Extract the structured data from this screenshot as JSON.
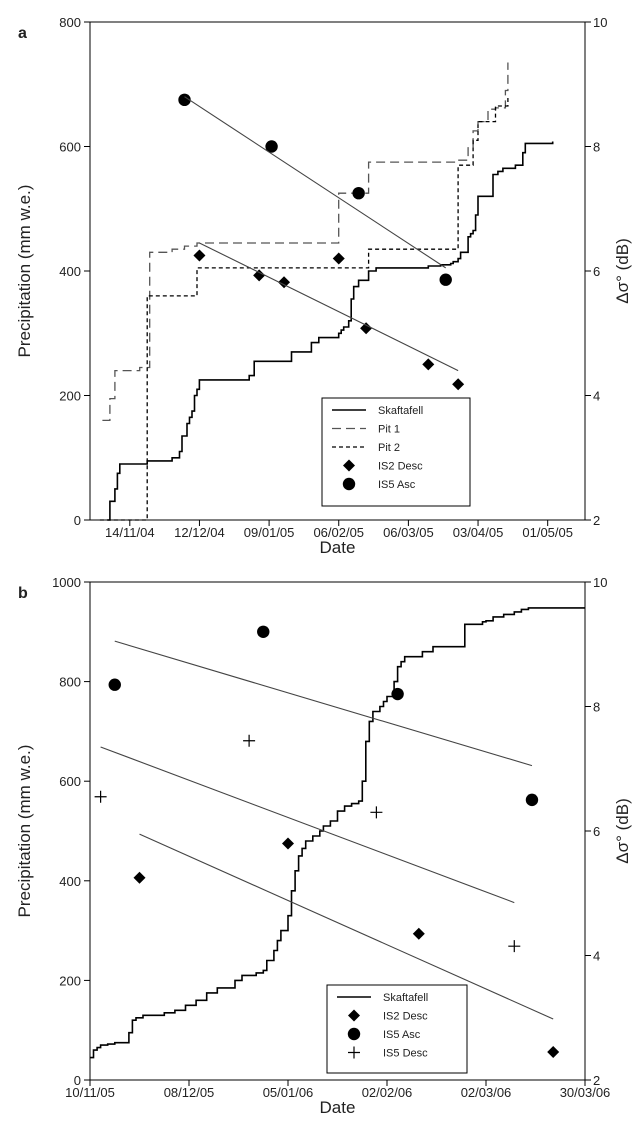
{
  "chart_data": [
    {
      "panel": "a",
      "type": "line",
      "xlabel": "Date",
      "ylabel": "Precipitation (mm w.e.)",
      "y2label": "Δσ° (dB)",
      "x_ticks": [
        "14/11/04",
        "12/12/04",
        "09/01/05",
        "06/02/05",
        "06/03/05",
        "03/04/05",
        "01/05/05"
      ],
      "xlim": [
        "2004-10-29",
        "2005-05-16"
      ],
      "ylim": [
        0,
        800
      ],
      "y_ticks": [
        0,
        200,
        400,
        600,
        800
      ],
      "y2lim": [
        2,
        10
      ],
      "y2_ticks": [
        2,
        4,
        6,
        8,
        10
      ],
      "legend": {
        "position": "bottom-right",
        "entries": [
          "Skaftafell",
          "Pit 1",
          "Pit 2",
          "IS2 Desc",
          "IS5 Asc"
        ]
      },
      "series": [
        {
          "name": "Skaftafell",
          "kind": "step",
          "style": "solid",
          "axis": "left",
          "x": [
            "2004-11-05",
            "2004-11-06",
            "2004-11-08",
            "2004-11-09",
            "2004-11-10",
            "2004-11-21",
            "2004-12-01",
            "2004-12-04",
            "2004-12-05",
            "2004-12-07",
            "2004-12-08",
            "2004-12-09",
            "2004-12-10",
            "2004-12-11",
            "2004-12-12",
            "2004-12-13",
            "2004-12-15",
            "2004-12-16",
            "2005-01-01",
            "2005-01-03",
            "2005-01-10",
            "2005-01-11",
            "2005-01-14",
            "2005-01-18",
            "2005-01-26",
            "2005-01-29",
            "2005-01-31",
            "2005-02-02",
            "2005-02-05",
            "2005-02-06",
            "2005-02-07",
            "2005-02-08",
            "2005-02-10",
            "2005-02-11",
            "2005-02-12",
            "2005-02-14",
            "2005-02-18",
            "2005-02-21",
            "2005-03-14",
            "2005-03-19",
            "2005-03-23",
            "2005-03-24",
            "2005-03-26",
            "2005-03-27",
            "2005-03-30",
            "2005-03-31",
            "2005-04-01",
            "2005-04-02",
            "2005-04-03",
            "2005-04-09",
            "2005-04-11",
            "2005-04-13",
            "2005-04-16",
            "2005-04-18",
            "2005-04-21",
            "2005-04-22",
            "2005-05-03"
          ],
          "values": [
            0,
            30,
            50,
            75,
            90,
            95,
            100,
            110,
            135,
            155,
            165,
            175,
            200,
            210,
            225,
            225,
            225,
            225,
            232,
            255,
            255,
            255,
            255,
            270,
            285,
            293,
            293,
            293,
            293,
            300,
            305,
            310,
            320,
            355,
            375,
            385,
            400,
            405,
            408,
            410,
            412,
            415,
            420,
            430,
            455,
            460,
            465,
            490,
            520,
            555,
            560,
            565,
            565,
            570,
            590,
            605,
            608
          ]
        },
        {
          "name": "Pit 1",
          "kind": "step",
          "style": "dashed",
          "axis": "left",
          "x": [
            "2004-11-03",
            "2004-11-06",
            "2004-11-08",
            "2004-11-18",
            "2004-11-22",
            "2004-12-01",
            "2004-12-06",
            "2004-12-11",
            "2005-02-06",
            "2005-02-18",
            "2005-03-26",
            "2005-03-30",
            "2005-04-01",
            "2005-04-03",
            "2005-04-07",
            "2005-04-10",
            "2005-04-14",
            "2005-04-15"
          ],
          "values": [
            160,
            195,
            240,
            245,
            430,
            435,
            440,
            445,
            525,
            575,
            578,
            600,
            625,
            640,
            660,
            662,
            690,
            735
          ]
        },
        {
          "name": "Pit 2",
          "kind": "step",
          "style": "dotted",
          "axis": "left",
          "x": [
            "2004-11-02",
            "2004-11-19",
            "2004-11-21",
            "2004-12-11",
            "2005-02-18",
            "2005-03-26",
            "2005-04-01",
            "2005-04-03",
            "2005-04-10",
            "2005-04-15"
          ],
          "values": [
            0,
            0,
            360,
            405,
            435,
            570,
            610,
            640,
            665,
            680
          ]
        },
        {
          "name": "IS2 Desc",
          "kind": "scatter",
          "marker": "diamond",
          "axis": "right",
          "x": [
            "2004-12-12",
            "2005-01-05",
            "2005-01-15",
            "2005-02-06",
            "2005-02-17",
            "2005-03-14",
            "2005-03-26"
          ],
          "values": [
            6.25,
            5.93,
            5.82,
            6.2,
            5.08,
            4.5,
            4.18
          ]
        },
        {
          "name": "IS5 Asc",
          "kind": "scatter",
          "marker": "circle",
          "axis": "right",
          "x": [
            "2004-12-06",
            "2005-01-10",
            "2005-02-14",
            "2005-03-21"
          ],
          "values": [
            8.75,
            8.0,
            7.25,
            5.86
          ]
        },
        {
          "kind": "trend",
          "axis": "right",
          "x": [
            "2004-12-06",
            "2005-03-21"
          ],
          "values": [
            8.8,
            6.05
          ]
        },
        {
          "kind": "trend",
          "axis": "right",
          "x": [
            "2004-12-12",
            "2005-03-26"
          ],
          "values": [
            6.45,
            4.4
          ]
        }
      ]
    },
    {
      "panel": "b",
      "type": "line",
      "xlabel": "Date",
      "ylabel": "Precipitation (mm w.e.)",
      "y2label": "Δσ° (dB)",
      "x_ticks": [
        "10/11/05",
        "08/12/05",
        "05/01/06",
        "02/02/06",
        "02/03/06",
        "30/03/06"
      ],
      "xlim": [
        "2005-11-10",
        "2006-03-30"
      ],
      "ylim": [
        0,
        1000
      ],
      "y_ticks": [
        0,
        200,
        400,
        600,
        800,
        1000
      ],
      "y2lim": [
        2,
        10
      ],
      "y2_ticks": [
        2,
        4,
        6,
        8,
        10
      ],
      "legend": {
        "position": "bottom-right",
        "entries": [
          "Skaftafell",
          "IS2 Desc",
          "IS5 Asc",
          "IS5 Desc"
        ]
      },
      "series": [
        {
          "name": "Skaftafell",
          "kind": "step",
          "style": "solid",
          "axis": "left",
          "x": [
            "2005-11-10",
            "2005-11-11",
            "2005-11-12",
            "2005-11-13",
            "2005-11-15",
            "2005-11-17",
            "2005-11-21",
            "2005-11-22",
            "2005-11-23",
            "2005-11-25",
            "2005-12-01",
            "2005-12-04",
            "2005-12-07",
            "2005-12-10",
            "2005-12-13",
            "2005-12-16",
            "2005-12-21",
            "2005-12-23",
            "2005-12-27",
            "2005-12-29",
            "2005-12-30",
            "2006-01-01",
            "2006-01-02",
            "2006-01-03",
            "2006-01-05",
            "2006-01-06",
            "2006-01-07",
            "2006-01-08",
            "2006-01-09",
            "2006-01-10",
            "2006-01-12",
            "2006-01-14",
            "2006-01-15",
            "2006-01-17",
            "2006-01-19",
            "2006-01-21",
            "2006-01-23",
            "2006-01-25",
            "2006-01-26",
            "2006-01-27",
            "2006-01-28",
            "2006-01-29",
            "2006-01-31",
            "2006-02-01",
            "2006-02-02",
            "2006-02-04",
            "2006-02-05",
            "2006-02-06",
            "2006-02-07",
            "2006-02-12",
            "2006-02-15",
            "2006-02-24",
            "2006-03-01",
            "2006-03-02",
            "2006-03-04",
            "2006-03-07",
            "2006-03-10",
            "2006-03-12",
            "2006-03-14",
            "2006-03-30"
          ],
          "values": [
            45,
            60,
            65,
            70,
            72,
            75,
            95,
            120,
            125,
            130,
            135,
            140,
            150,
            160,
            175,
            185,
            200,
            210,
            215,
            220,
            240,
            260,
            280,
            300,
            330,
            380,
            420,
            450,
            465,
            480,
            490,
            500,
            510,
            520,
            540,
            550,
            555,
            560,
            600,
            680,
            720,
            740,
            750,
            760,
            770,
            800,
            830,
            840,
            850,
            860,
            870,
            915,
            920,
            922,
            930,
            935,
            940,
            945,
            948,
            948
          ]
        },
        {
          "name": "IS2 Desc",
          "kind": "scatter",
          "marker": "diamond",
          "axis": "right",
          "x": [
            "2005-11-24",
            "2006-01-05",
            "2006-02-11",
            "2006-03-21"
          ],
          "values": [
            5.25,
            5.8,
            4.35,
            2.45
          ]
        },
        {
          "name": "IS5 Asc",
          "kind": "scatter",
          "marker": "circle",
          "axis": "right",
          "x": [
            "2005-11-17",
            "2005-12-29",
            "2006-02-05",
            "2006-03-15"
          ],
          "values": [
            8.35,
            9.2,
            8.2,
            6.5
          ]
        },
        {
          "name": "IS5 Desc",
          "kind": "scatter",
          "marker": "plus",
          "axis": "right",
          "x": [
            "2005-11-13",
            "2005-12-25",
            "2006-01-30",
            "2006-03-10"
          ],
          "values": [
            6.55,
            7.45,
            6.3,
            4.15
          ]
        },
        {
          "kind": "trend",
          "axis": "right",
          "x": [
            "2005-11-17",
            "2006-03-15"
          ],
          "values": [
            9.05,
            7.05
          ]
        },
        {
          "kind": "trend",
          "axis": "right",
          "x": [
            "2005-11-13",
            "2006-03-10"
          ],
          "values": [
            7.35,
            4.85
          ]
        },
        {
          "kind": "trend",
          "axis": "right",
          "x": [
            "2005-11-24",
            "2006-03-21"
          ],
          "values": [
            5.95,
            2.98
          ]
        }
      ]
    }
  ]
}
